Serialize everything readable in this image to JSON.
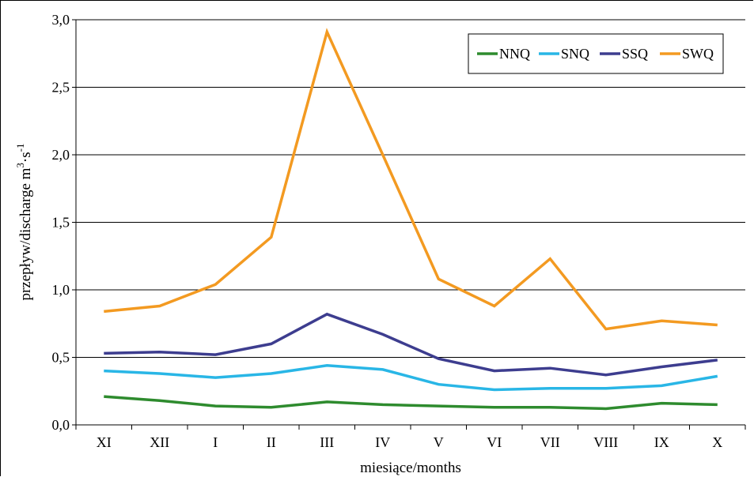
{
  "chart_data": {
    "type": "line",
    "categories": [
      "XI",
      "XII",
      "I",
      "II",
      "III",
      "IV",
      "V",
      "VI",
      "VII",
      "VIII",
      "IX",
      "X"
    ],
    "series": [
      {
        "name": "NNQ",
        "color": "#2e8b2e",
        "values": [
          0.21,
          0.18,
          0.14,
          0.13,
          0.17,
          0.15,
          0.14,
          0.13,
          0.13,
          0.12,
          0.16,
          0.15
        ]
      },
      {
        "name": "SNQ",
        "color": "#29b6e6",
        "values": [
          0.4,
          0.38,
          0.35,
          0.38,
          0.44,
          0.41,
          0.3,
          0.26,
          0.27,
          0.27,
          0.29,
          0.36
        ]
      },
      {
        "name": "SSQ",
        "color": "#3d3d8f",
        "values": [
          0.53,
          0.54,
          0.52,
          0.6,
          0.82,
          0.67,
          0.49,
          0.4,
          0.42,
          0.37,
          0.43,
          0.48
        ]
      },
      {
        "name": "SWQ",
        "color": "#f39a21",
        "values": [
          0.84,
          0.88,
          1.04,
          1.39,
          2.91,
          2.0,
          1.08,
          0.88,
          1.23,
          0.71,
          0.77,
          0.74
        ]
      }
    ],
    "y_ticks": [
      "0,0",
      "0,5",
      "1,0",
      "1,5",
      "2,0",
      "2,5",
      "3,0"
    ],
    "ylim": [
      0,
      3.0
    ],
    "xlabel": "miesiące/months",
    "ylabel": {
      "base": "przepływ/discharge m",
      "sup1": "3",
      "mid": "·s",
      "sup2": "-1"
    },
    "grid": true,
    "legend_position": "top-right"
  }
}
